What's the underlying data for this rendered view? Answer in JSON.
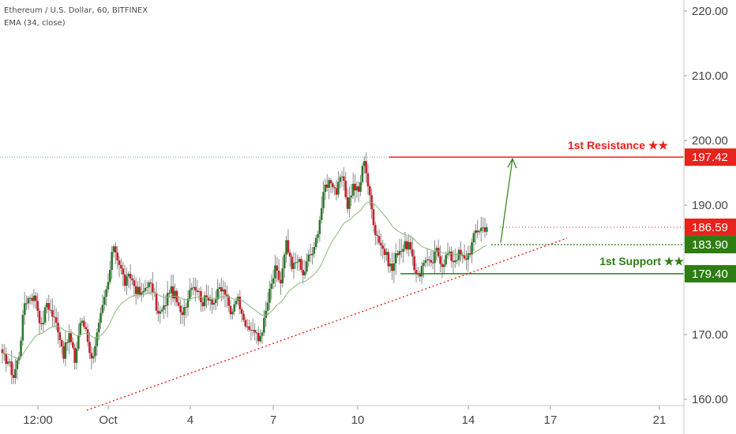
{
  "header": {
    "title": "Ethereum / U.S. Dollar, 60, BITFINEX",
    "indicator": "EMA (34, close)"
  },
  "chart_data": {
    "type": "candlestick",
    "symbol": "Ethereum / U.S. Dollar",
    "interval": "60",
    "exchange": "BITFINEX",
    "indicator": "EMA (34, close)",
    "y_range": [
      157,
      221
    ],
    "y_ticks": [
      "160.00",
      "170.00",
      "180.00",
      "190.00",
      "200.00",
      "210.00",
      "220.00"
    ],
    "x_ticks": [
      "12:00",
      "Oct",
      "4",
      "7",
      "10",
      "14",
      "17",
      "21"
    ],
    "price_path": [
      [
        0,
        166.5
      ],
      [
        1,
        166
      ],
      [
        2,
        163.5
      ],
      [
        3,
        167
      ],
      [
        4,
        175
      ],
      [
        5,
        176
      ],
      [
        6,
        175.5
      ],
      [
        7,
        171
      ],
      [
        8,
        175
      ],
      [
        9,
        173
      ],
      [
        10,
        171
      ],
      [
        11,
        167
      ],
      [
        12,
        170
      ],
      [
        13,
        166
      ],
      [
        14,
        172
      ],
      [
        15,
        171
      ],
      [
        16,
        166
      ],
      [
        17,
        170
      ],
      [
        18,
        174
      ],
      [
        19,
        178
      ],
      [
        20,
        184
      ],
      [
        21,
        181
      ],
      [
        22,
        178
      ],
      [
        23,
        179
      ],
      [
        24,
        177
      ],
      [
        25,
        176
      ],
      [
        26,
        178
      ],
      [
        27,
        177
      ],
      [
        28,
        173
      ],
      [
        29,
        174
      ],
      [
        30,
        177
      ],
      [
        31,
        176
      ],
      [
        32,
        173
      ],
      [
        33,
        175
      ],
      [
        34,
        178
      ],
      [
        35,
        177
      ],
      [
        36,
        175
      ],
      [
        37,
        176
      ],
      [
        38,
        175
      ],
      [
        39,
        177
      ],
      [
        40,
        176.5
      ],
      [
        41,
        173
      ],
      [
        42,
        176
      ],
      [
        43,
        174
      ],
      [
        44,
        170.5
      ],
      [
        45,
        171
      ],
      [
        46,
        169
      ],
      [
        47,
        172
      ],
      [
        48,
        176.5
      ],
      [
        49,
        180
      ],
      [
        50,
        178
      ],
      [
        51,
        184
      ],
      [
        52,
        180
      ],
      [
        53,
        182
      ],
      [
        54,
        179
      ],
      [
        55,
        182
      ],
      [
        56,
        183
      ],
      [
        57,
        188
      ],
      [
        58,
        193
      ],
      [
        59,
        194
      ],
      [
        60,
        192
      ],
      [
        61,
        194.5
      ],
      [
        62,
        190
      ],
      [
        63,
        193
      ],
      [
        64,
        192
      ],
      [
        65,
        197.4
      ],
      [
        66,
        191
      ],
      [
        67,
        186
      ],
      [
        68,
        184
      ],
      [
        69,
        182
      ],
      [
        70,
        180
      ],
      [
        71,
        183
      ],
      [
        72,
        183.5
      ],
      [
        73,
        184
      ],
      [
        74,
        180
      ],
      [
        75,
        179.5
      ],
      [
        76,
        182
      ],
      [
        77,
        180.5
      ],
      [
        78,
        183
      ],
      [
        79,
        181
      ],
      [
        80,
        182.5
      ],
      [
        81,
        181.5
      ],
      [
        82,
        182.5
      ],
      [
        83,
        181.5
      ],
      [
        84,
        183
      ],
      [
        85,
        186
      ],
      [
        86,
        186.5
      ],
      [
        87,
        186.6
      ]
    ],
    "levels": [
      {
        "name": "1st Resistance",
        "value": 197.42,
        "color": "#e8221c"
      },
      {
        "name": "",
        "value": 183.9,
        "color": "#2e7d12"
      },
      {
        "name": "1st Support",
        "value": 179.4,
        "color": "#2e7d12"
      },
      {
        "name": "",
        "value": 186.59,
        "color": "#e8221c"
      }
    ],
    "annotations": {
      "resistance_label": "1st Resistance ★★",
      "support_label": "1st Support ★★",
      "resistance_value": "197.42",
      "current_value": "186.59",
      "pivot_value": "183.90",
      "support_value": "179.40"
    },
    "trendline": {
      "from": [
        "Sep 30",
        158
      ],
      "to": [
        "Oct 17",
        185
      ]
    },
    "colors": {
      "up": "#2c7a2c",
      "down": "#c8202a",
      "wick": "#8a8a8a",
      "ema": "#8db77a",
      "resistance": "#e8221c",
      "support": "#2e7d12",
      "trendline": "#e8221c",
      "crosshair": "#6fa0c8"
    },
    "grid": false,
    "legend": "none"
  }
}
